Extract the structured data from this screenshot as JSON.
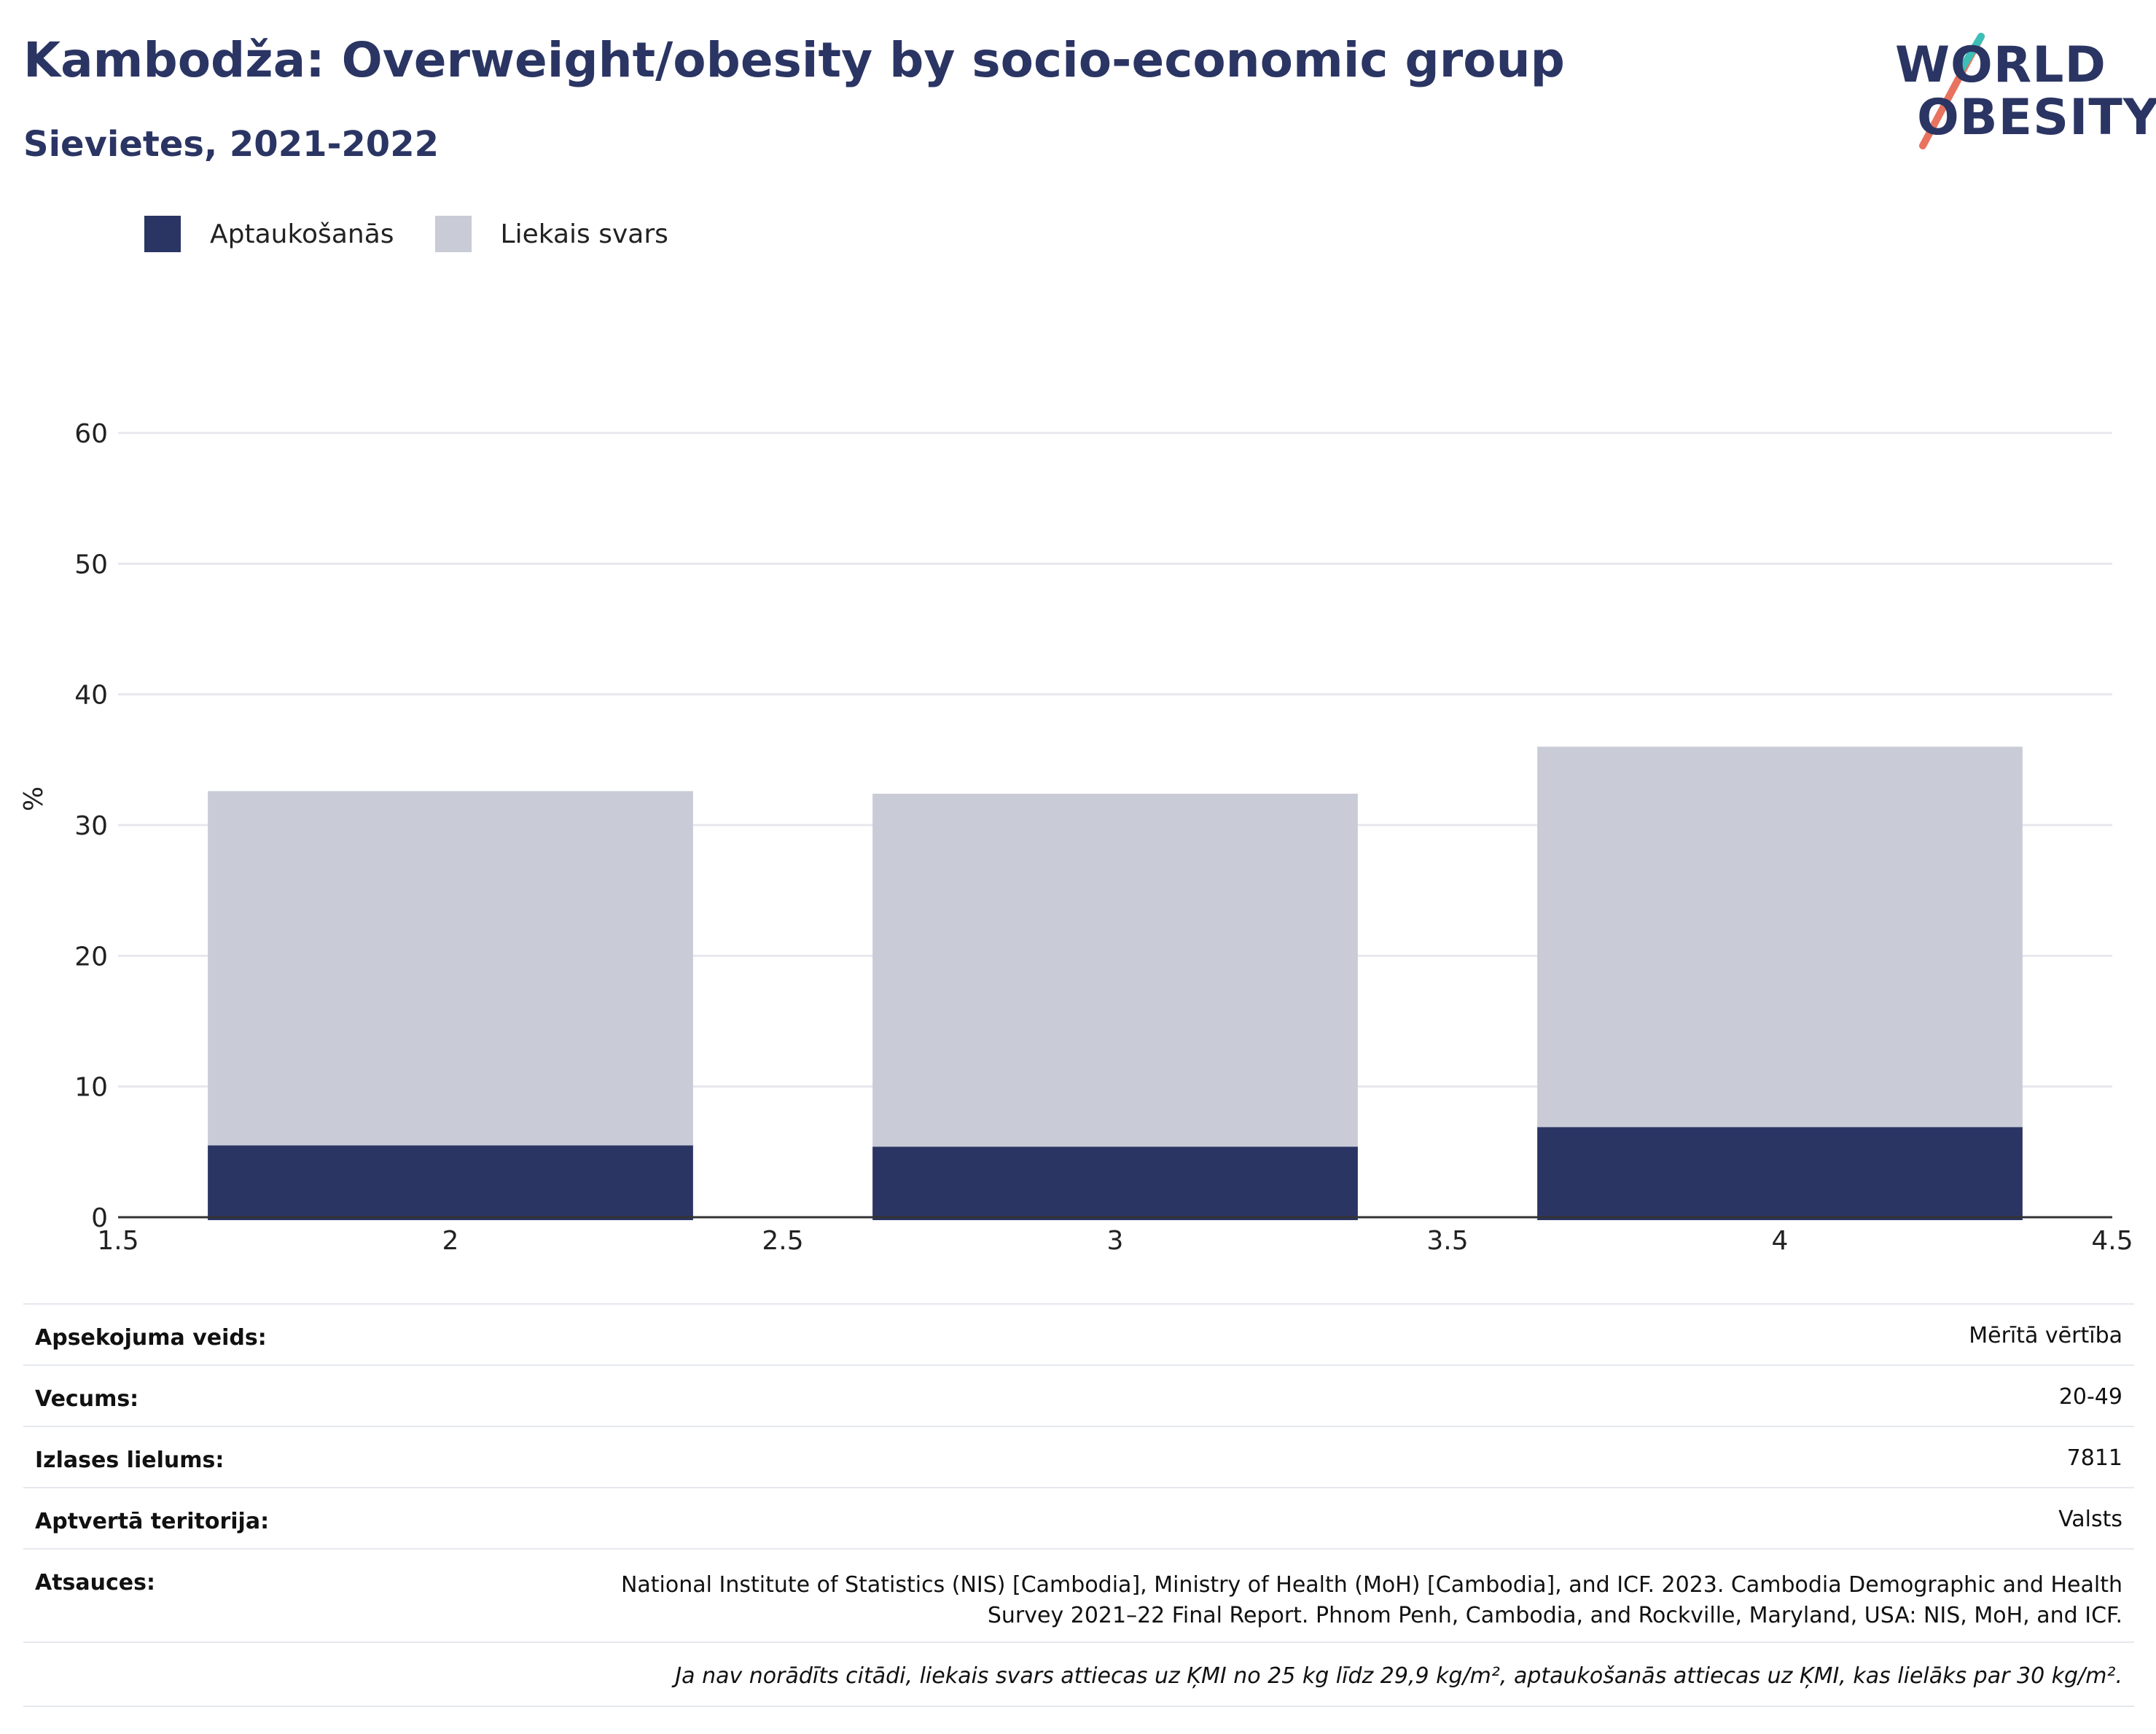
{
  "header": {
    "title": "Kambodža: Overweight/obesity by socio-economic group",
    "subtitle": "Sievietes, 2021-2022"
  },
  "logo": {
    "line1": "WORLD",
    "line2": "OBESITY"
  },
  "chart_data": {
    "type": "bar",
    "stacked": true,
    "x": [
      2,
      3,
      4
    ],
    "series": [
      {
        "name": "Aptaukošanās",
        "values": [
          5.5,
          5.4,
          6.9
        ],
        "color": "#2a3564"
      },
      {
        "name": "Liekais svars",
        "values": [
          27.1,
          27.0,
          29.1
        ],
        "color": "#c9ccd7"
      }
    ],
    "ylabel": "%",
    "xlim": [
      1.5,
      4.5
    ],
    "ylim": [
      0,
      60
    ],
    "xticks": [
      "1.5",
      "2",
      "2.5",
      "3",
      "3.5",
      "4",
      "4.5"
    ],
    "yticks": [
      "0",
      "10",
      "20",
      "30",
      "40",
      "50",
      "60"
    ],
    "grid": true,
    "legend_position": "top-left"
  },
  "info": {
    "rows": [
      {
        "key": "Apsekojuma veids:",
        "value": "Mērītā vērtība"
      },
      {
        "key": "Vecums:",
        "value": "20-49"
      },
      {
        "key": "Izlases lielums:",
        "value": "7811"
      },
      {
        "key": "Aptvertā teritorija:",
        "value": "Valsts"
      }
    ],
    "sources_key": "Atsauces:",
    "sources_value": "National Institute of Statistics (NIS) [Cambodia], Ministry of Health (MoH) [Cambodia], and ICF. 2023. Cambodia Demographic and Health Survey 2021–22 Final Report. Phnom Penh, Cambodia, and Rockville, Maryland, USA: NIS, MoH, and ICF.",
    "note": "Ja nav norādīts citādi, liekais svars attiecas uz ĶMI no 25 kg līdz 29,9 kg/m², aptaukošanās attiecas uz ĶMI, kas lielāks par 30 kg/m²."
  }
}
